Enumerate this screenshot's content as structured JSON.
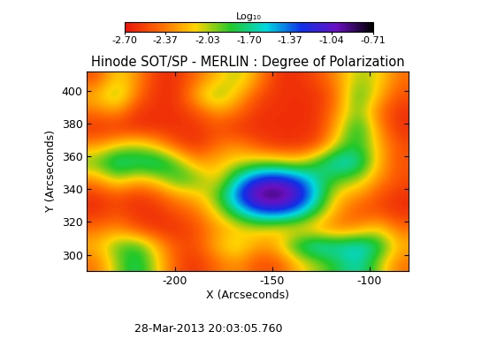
{
  "chart_data": {
    "type": "heatmap",
    "title": "Hinode SOT/SP - MERLIN : Degree of Polarization",
    "x_label": "X (Arcseconds)",
    "y_label": "Y (Arcseconds)",
    "annotation": "28-Mar-2013 20:03:05.760",
    "xlim": [
      -245,
      -80
    ],
    "ylim": [
      290,
      412
    ],
    "xticks": [
      -200,
      -150,
      -100
    ],
    "yticks": [
      300,
      320,
      340,
      360,
      380,
      400
    ],
    "colorbar_label": "Log₁₀",
    "colorbar_range": [
      -2.7,
      -0.71
    ],
    "colorbar_ticks": [
      {
        "value": -2.7,
        "label": "-2.70"
      },
      -2.37,
      -2.03,
      {
        "value": -1.7,
        "label": "-1.70"
      },
      -1.37,
      -1.04,
      -0.71
    ],
    "cells": [
      [
        -2.5,
        -2.1,
        -2.3,
        -2.6,
        -2.6,
        -2.4,
        -2.2,
        -2.0,
        -2.3,
        -2.6,
        -2.6,
        -2.5,
        -2.3,
        -2.0,
        -2.1,
        -2.4
      ],
      [
        -2.2,
        -1.9,
        -2.4,
        -2.6,
        -2.6,
        -2.2,
        -1.9,
        -2.2,
        -2.5,
        -2.6,
        -2.6,
        -2.6,
        -2.4,
        -1.8,
        -2.2,
        -2.5
      ],
      [
        -2.4,
        -2.3,
        -2.6,
        -2.6,
        -2.6,
        -2.5,
        -2.3,
        -2.4,
        -2.6,
        -2.6,
        -2.6,
        -2.6,
        -2.3,
        -1.9,
        -2.4,
        -2.6
      ],
      [
        -2.6,
        -2.6,
        -2.6,
        -2.6,
        -2.6,
        -2.6,
        -2.5,
        -2.6,
        -2.6,
        -2.6,
        -2.6,
        -2.6,
        -2.2,
        -1.7,
        -2.3,
        -2.6
      ],
      [
        -2.3,
        -2.1,
        -2.0,
        -2.2,
        -2.5,
        -2.6,
        -2.4,
        -2.3,
        -2.5,
        -2.6,
        -2.6,
        -2.5,
        -2.0,
        -1.8,
        -2.2,
        -2.5
      ],
      [
        -1.9,
        -1.6,
        -1.7,
        -1.6,
        -1.9,
        -2.3,
        -2.2,
        -2.1,
        -2.0,
        -2.0,
        -2.1,
        -1.8,
        -1.5,
        -1.6,
        -2.2,
        -2.5
      ],
      [
        -2.3,
        -2.0,
        -2.2,
        -2.1,
        -1.8,
        -1.9,
        -2.2,
        -1.6,
        -1.2,
        -1.1,
        -1.3,
        -1.7,
        -1.9,
        -2.0,
        -2.3,
        -2.5
      ],
      [
        -2.6,
        -2.5,
        -2.6,
        -2.5,
        -2.3,
        -2.2,
        -1.9,
        -1.3,
        -0.8,
        -0.75,
        -1.0,
        -1.6,
        -2.2,
        -2.3,
        -2.5,
        -2.6
      ],
      [
        -2.6,
        -2.5,
        -2.6,
        -2.6,
        -2.5,
        -2.4,
        -2.1,
        -1.7,
        -1.4,
        -1.3,
        -1.5,
        -1.9,
        -2.3,
        -2.5,
        -2.5,
        -2.6
      ],
      [
        -2.4,
        -2.3,
        -2.5,
        -2.6,
        -2.6,
        -2.5,
        -2.3,
        -2.2,
        -2.1,
        -2.2,
        -2.2,
        -2.3,
        -2.4,
        -2.3,
        -2.1,
        -2.4
      ],
      [
        -2.2,
        -1.9,
        -1.8,
        -2.2,
        -2.5,
        -2.5,
        -2.2,
        -2.0,
        -2.3,
        -2.2,
        -1.7,
        -1.5,
        -1.6,
        -1.5,
        -1.7,
        -2.2
      ],
      [
        -2.4,
        -2.0,
        -1.7,
        -2.1,
        -2.5,
        -2.6,
        -2.4,
        -2.3,
        -2.5,
        -2.5,
        -2.2,
        -2.0,
        -1.8,
        -1.6,
        -2.0,
        -2.4
      ]
    ]
  }
}
